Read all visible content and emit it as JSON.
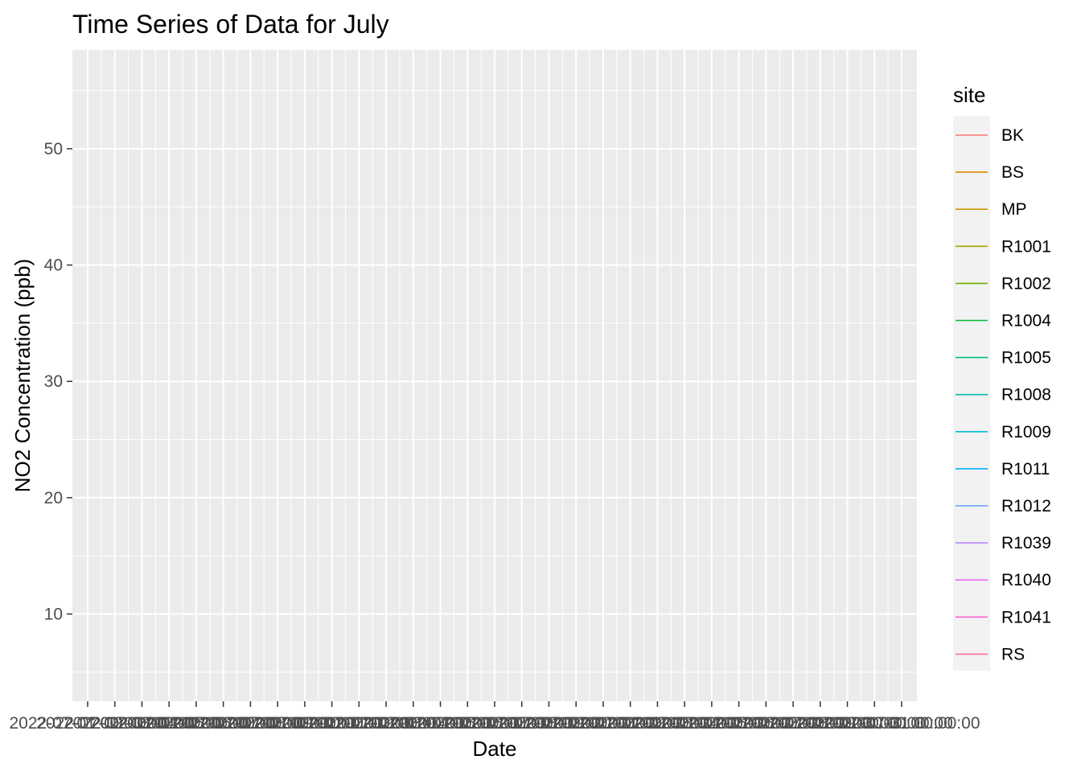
{
  "chart_data": {
    "type": "line",
    "title": "Time Series of Data for July",
    "xlabel": "Date",
    "ylabel": "NO2 Concentration (ppb)",
    "ylim": [
      2.5,
      58.5
    ],
    "y_ticks": [
      10,
      20,
      30,
      40,
      50
    ],
    "x_tick_count": 31,
    "x_tick_labels": [
      "2022-07-01 00:00:00",
      "2022-07-02 00:00:00",
      "2022-07-03 00:00:00",
      "2022-07-04 00:00:00",
      "2022-07-05 00:00:00",
      "2022-07-06 00:00:00",
      "2022-07-07 00:00:00",
      "2022-07-08 00:00:00",
      "2022-07-09 00:00:00",
      "2022-07-10 00:00:00",
      "2022-07-11 00:00:00",
      "2022-07-12 00:00:00",
      "2022-07-13 00:00:00",
      "2022-07-14 00:00:00",
      "2022-07-15 00:00:00",
      "2022-07-16 00:00:00",
      "2022-07-17 00:00:00",
      "2022-07-18 00:00:00",
      "2022-07-19 00:00:00",
      "2022-07-20 00:00:00",
      "2022-07-21 00:00:00",
      "2022-07-22 00:00:00",
      "2022-07-23 00:00:00",
      "2022-07-24 00:00:00",
      "2022-07-25 00:00:00",
      "2022-07-26 00:00:00",
      "2022-07-27 00:00:00",
      "2022-07-28 00:00:00",
      "2022-07-29 00:00:00",
      "2022-07-30 00:00:00",
      "2022-07-31 00:00:00"
    ],
    "grid": true,
    "legend": {
      "title": "site",
      "position": "right",
      "entries": [
        {
          "name": "BK",
          "color": "#F8766D"
        },
        {
          "name": "BS",
          "color": "#E58700"
        },
        {
          "name": "MP",
          "color": "#C99800"
        },
        {
          "name": "R1001",
          "color": "#A3A500"
        },
        {
          "name": "R1002",
          "color": "#6BB100"
        },
        {
          "name": "R1004",
          "color": "#00BA38"
        },
        {
          "name": "R1005",
          "color": "#00BF7D"
        },
        {
          "name": "R1008",
          "color": "#00C0AF"
        },
        {
          "name": "R1009",
          "color": "#00BCD8"
        },
        {
          "name": "R1011",
          "color": "#00B0F6"
        },
        {
          "name": "R1012",
          "color": "#619CFF"
        },
        {
          "name": "R1039",
          "color": "#B983FF"
        },
        {
          "name": "R1040",
          "color": "#E76BF3"
        },
        {
          "name": "R1041",
          "color": "#FD61D1"
        },
        {
          "name": "RS",
          "color": "#FF67A4"
        }
      ]
    },
    "series": []
  }
}
